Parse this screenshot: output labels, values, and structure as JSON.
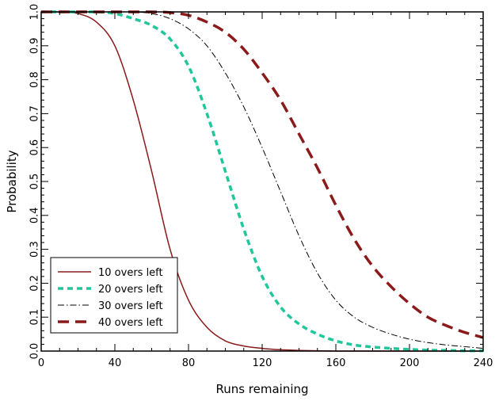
{
  "chart_data": {
    "type": "line",
    "title": "",
    "xlabel": "Runs remaining",
    "ylabel": "Probability",
    "xlim": [
      0,
      240
    ],
    "ylim": [
      0.0,
      1.0
    ],
    "xticks": [
      0,
      40,
      80,
      120,
      160,
      200,
      240
    ],
    "xtick_labels": [
      "0",
      "40",
      "80",
      "120",
      "160",
      "200",
      "240"
    ],
    "yticks": [
      0.0,
      0.1,
      0.2,
      0.3,
      0.4,
      0.5,
      0.6,
      0.7,
      0.8,
      0.9,
      1.0
    ],
    "ytick_labels": [
      "0.0",
      "0.1",
      "0.2",
      "0.3",
      "0.4",
      "0.5",
      "0.6",
      "0.7",
      "0.8",
      "0.9",
      "1.0"
    ],
    "grid": false,
    "legend": "bottom-left",
    "x": [
      0,
      10,
      20,
      30,
      40,
      50,
      60,
      70,
      80,
      90,
      100,
      110,
      120,
      130,
      140,
      150,
      160,
      170,
      180,
      190,
      200,
      210,
      220,
      230,
      240
    ],
    "series": [
      {
        "name": "10 overs left",
        "color": "#8b1a1a",
        "style": "solid",
        "values": [
          1.0,
          1.0,
          0.995,
          0.97,
          0.9,
          0.74,
          0.53,
          0.3,
          0.15,
          0.07,
          0.03,
          0.015,
          0.008,
          0.004,
          0.002,
          0.001,
          0.0,
          0.0,
          0.0,
          0.0,
          0.0,
          0.0,
          0.0,
          0.0,
          0.0
        ]
      },
      {
        "name": "20 overs left",
        "color": "#1fc79a",
        "style": "dashed",
        "values": [
          1.0,
          1.0,
          1.0,
          1.0,
          0.995,
          0.98,
          0.96,
          0.92,
          0.84,
          0.7,
          0.53,
          0.36,
          0.22,
          0.13,
          0.08,
          0.05,
          0.03,
          0.018,
          0.012,
          0.008,
          0.005,
          0.003,
          0.002,
          0.001,
          0.001
        ]
      },
      {
        "name": "30 overs left",
        "color": "#000000",
        "style": "dashdot",
        "values": [
          1.0,
          1.0,
          1.0,
          1.0,
          1.0,
          1.0,
          0.995,
          0.98,
          0.95,
          0.9,
          0.82,
          0.72,
          0.6,
          0.47,
          0.34,
          0.23,
          0.15,
          0.1,
          0.07,
          0.05,
          0.035,
          0.025,
          0.018,
          0.013,
          0.008
        ]
      },
      {
        "name": "40 overs left",
        "color": "#8b1a1a",
        "style": "longdash",
        "values": [
          1.0,
          1.0,
          1.0,
          1.0,
          1.0,
          1.0,
          1.0,
          0.998,
          0.99,
          0.97,
          0.94,
          0.89,
          0.82,
          0.74,
          0.64,
          0.54,
          0.43,
          0.33,
          0.25,
          0.19,
          0.14,
          0.1,
          0.075,
          0.055,
          0.04
        ]
      }
    ]
  }
}
